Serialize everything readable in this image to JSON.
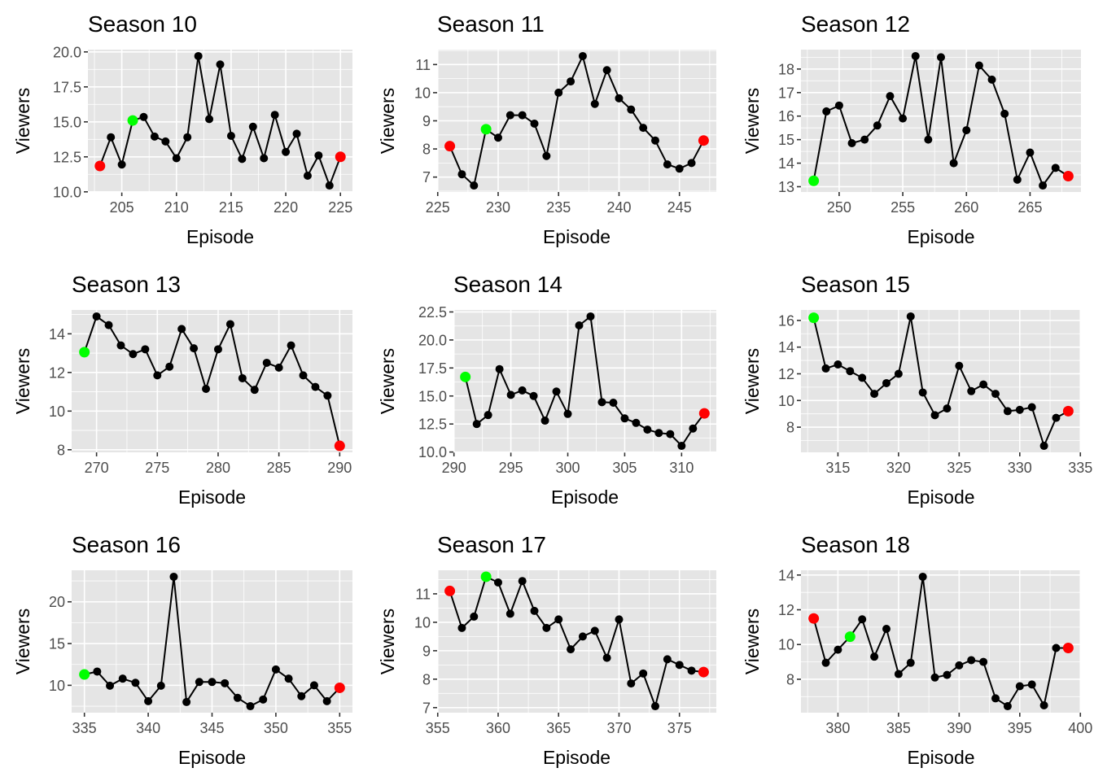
{
  "chart_data": [
    {
      "type": "line",
      "title": "Season 10",
      "xlabel": "Episode",
      "ylabel": "Viewers",
      "x_ticks": [
        205,
        210,
        215,
        220,
        225
      ],
      "y_ticks": [
        10.0,
        12.5,
        15.0,
        17.5,
        20.0
      ],
      "y_tick_labels": [
        "10.0",
        "12.5",
        "15.0",
        "17.5",
        "20.0"
      ],
      "grid": true,
      "x": [
        203,
        204,
        205,
        206,
        207,
        208,
        209,
        210,
        211,
        212,
        213,
        214,
        215,
        216,
        217,
        218,
        219,
        220,
        221,
        222,
        223,
        224,
        225
      ],
      "y": [
        11.85,
        13.9,
        11.95,
        15.1,
        15.35,
        13.95,
        13.6,
        12.4,
        13.9,
        19.7,
        15.2,
        19.1,
        14.0,
        12.35,
        14.65,
        12.4,
        15.5,
        12.85,
        14.15,
        11.15,
        12.6,
        10.45,
        12.5
      ],
      "highlight": [
        {
          "x": 203,
          "color": "#ff0000"
        },
        {
          "x": 206,
          "color": "#00ff00"
        },
        {
          "x": 225,
          "color": "#ff0000"
        }
      ]
    },
    {
      "type": "line",
      "title": "Season 11",
      "xlabel": "Episode",
      "ylabel": "Viewers",
      "x_ticks": [
        225,
        230,
        235,
        240,
        245
      ],
      "y_ticks": [
        7,
        8,
        9,
        10,
        11
      ],
      "y_tick_labels": [
        "7",
        "8",
        "9",
        "10",
        "11"
      ],
      "grid": true,
      "x": [
        226,
        227,
        228,
        229,
        230,
        231,
        232,
        233,
        234,
        235,
        236,
        237,
        238,
        239,
        240,
        241,
        242,
        243,
        244,
        245,
        246,
        247
      ],
      "y": [
        8.1,
        7.1,
        6.7,
        8.7,
        8.4,
        9.2,
        9.2,
        8.9,
        7.75,
        10.0,
        10.4,
        11.3,
        9.6,
        10.8,
        9.8,
        9.4,
        8.75,
        8.3,
        7.45,
        7.3,
        7.5,
        8.3
      ],
      "highlight": [
        {
          "x": 226,
          "color": "#ff0000"
        },
        {
          "x": 229,
          "color": "#00ff00"
        },
        {
          "x": 247,
          "color": "#ff0000"
        }
      ]
    },
    {
      "type": "line",
      "title": "Season 12",
      "xlabel": "Episode",
      "ylabel": "Viewers",
      "x_ticks": [
        250,
        255,
        260,
        265
      ],
      "y_ticks": [
        13,
        14,
        15,
        16,
        17,
        18
      ],
      "y_tick_labels": [
        "13",
        "14",
        "15",
        "16",
        "17",
        "18"
      ],
      "grid": true,
      "x": [
        248,
        249,
        250,
        251,
        252,
        253,
        254,
        255,
        256,
        257,
        258,
        259,
        260,
        261,
        262,
        263,
        264,
        265,
        266,
        267,
        268
      ],
      "y": [
        13.25,
        16.2,
        16.45,
        14.85,
        15.0,
        15.6,
        16.85,
        15.9,
        18.55,
        15.0,
        18.5,
        14.0,
        15.4,
        18.15,
        17.55,
        16.1,
        13.3,
        14.45,
        13.05,
        13.8,
        13.45
      ],
      "highlight": [
        {
          "x": 248,
          "color": "#00ff00"
        },
        {
          "x": 268,
          "color": "#ff0000"
        }
      ]
    },
    {
      "type": "line",
      "title": "Season 13",
      "xlabel": "Episode",
      "ylabel": "Viewers",
      "x_ticks": [
        270,
        275,
        280,
        285,
        290
      ],
      "y_ticks": [
        8,
        10,
        12,
        14
      ],
      "y_tick_labels": [
        "8",
        "10",
        "12",
        "14"
      ],
      "grid": true,
      "x": [
        269,
        270,
        271,
        272,
        273,
        274,
        275,
        276,
        277,
        278,
        279,
        280,
        281,
        282,
        283,
        284,
        285,
        286,
        287,
        288,
        289,
        290
      ],
      "y": [
        13.05,
        14.9,
        14.45,
        13.4,
        12.95,
        13.2,
        11.85,
        12.3,
        14.25,
        13.25,
        11.15,
        13.2,
        14.5,
        11.7,
        11.1,
        12.5,
        12.25,
        13.4,
        11.85,
        11.25,
        10.8,
        8.2
      ],
      "highlight": [
        {
          "x": 269,
          "color": "#00ff00"
        },
        {
          "x": 290,
          "color": "#ff0000"
        }
      ]
    },
    {
      "type": "line",
      "title": "Season 14",
      "xlabel": "Episode",
      "ylabel": "Viewers",
      "x_ticks": [
        290,
        295,
        300,
        305,
        310
      ],
      "y_ticks": [
        10.0,
        12.5,
        15.0,
        17.5,
        20.0,
        22.5
      ],
      "y_tick_labels": [
        "10.0",
        "12.5",
        "15.0",
        "17.5",
        "20.0",
        "22.5"
      ],
      "grid": true,
      "x": [
        291,
        292,
        293,
        294,
        295,
        296,
        297,
        298,
        299,
        300,
        301,
        302,
        303,
        304,
        305,
        306,
        307,
        308,
        309,
        310,
        311,
        312
      ],
      "y": [
        16.7,
        12.5,
        13.3,
        17.4,
        15.1,
        15.5,
        15.0,
        12.8,
        15.4,
        13.4,
        21.3,
        22.1,
        14.45,
        14.4,
        13.0,
        12.6,
        12.0,
        11.7,
        11.6,
        10.55,
        12.1,
        13.45
      ],
      "highlight": [
        {
          "x": 291,
          "color": "#00ff00"
        },
        {
          "x": 312,
          "color": "#ff0000"
        }
      ]
    },
    {
      "type": "line",
      "title": "Season 15",
      "xlabel": "Episode",
      "ylabel": "Viewers",
      "x_ticks": [
        315,
        320,
        325,
        330,
        335
      ],
      "y_ticks": [
        8,
        10,
        12,
        14,
        16
      ],
      "y_tick_labels": [
        "8",
        "10",
        "12",
        "14",
        "16"
      ],
      "grid": true,
      "x": [
        313,
        314,
        315,
        316,
        317,
        318,
        319,
        320,
        321,
        322,
        323,
        324,
        325,
        326,
        327,
        328,
        329,
        330,
        331,
        332,
        333,
        334
      ],
      "y": [
        16.2,
        12.4,
        12.7,
        12.2,
        11.7,
        10.5,
        11.3,
        12.0,
        16.3,
        10.6,
        8.9,
        9.4,
        12.6,
        10.7,
        11.2,
        10.5,
        9.2,
        9.3,
        9.5,
        6.6,
        8.7,
        9.2
      ],
      "highlight": [
        {
          "x": 313,
          "color": "#00ff00"
        },
        {
          "x": 334,
          "color": "#ff0000"
        }
      ]
    },
    {
      "type": "line",
      "title": "Season 16",
      "xlabel": "Episode",
      "ylabel": "Viewers",
      "x_ticks": [
        335,
        340,
        345,
        350,
        355
      ],
      "y_ticks": [
        10,
        15,
        20
      ],
      "y_tick_labels": [
        "10",
        "15",
        "20"
      ],
      "grid": true,
      "x": [
        335,
        336,
        337,
        338,
        339,
        340,
        341,
        342,
        343,
        344,
        345,
        346,
        347,
        348,
        349,
        350,
        351,
        352,
        353,
        354,
        355
      ],
      "y": [
        11.3,
        11.65,
        9.95,
        10.8,
        10.3,
        8.1,
        9.95,
        23.0,
        8.0,
        10.4,
        10.4,
        10.25,
        8.5,
        7.5,
        8.3,
        11.9,
        10.8,
        8.7,
        10.0,
        8.1,
        9.7
      ],
      "highlight": [
        {
          "x": 335,
          "color": "#00ff00"
        },
        {
          "x": 355,
          "color": "#ff0000"
        }
      ]
    },
    {
      "type": "line",
      "title": "Season 17",
      "xlabel": "Episode",
      "ylabel": "Viewers",
      "x_ticks": [
        355,
        360,
        365,
        370,
        375
      ],
      "y_ticks": [
        7,
        8,
        9,
        10,
        11
      ],
      "y_tick_labels": [
        "7",
        "8",
        "9",
        "10",
        "11"
      ],
      "grid": true,
      "x": [
        356,
        357,
        358,
        359,
        360,
        361,
        362,
        363,
        364,
        365,
        366,
        367,
        368,
        369,
        370,
        371,
        372,
        373,
        374,
        375,
        376,
        377
      ],
      "y": [
        11.1,
        9.8,
        10.2,
        11.6,
        11.4,
        10.3,
        11.45,
        10.4,
        9.8,
        10.1,
        9.05,
        9.5,
        9.7,
        8.75,
        10.1,
        7.85,
        8.2,
        7.05,
        8.7,
        8.5,
        8.3,
        8.25
      ],
      "highlight": [
        {
          "x": 356,
          "color": "#ff0000"
        },
        {
          "x": 359,
          "color": "#00ff00"
        },
        {
          "x": 377,
          "color": "#ff0000"
        }
      ]
    },
    {
      "type": "line",
      "title": "Season 18",
      "xlabel": "Episode",
      "ylabel": "Viewers",
      "x_ticks": [
        380,
        385,
        390,
        395,
        400
      ],
      "y_ticks": [
        8,
        10,
        12,
        14
      ],
      "y_tick_labels": [
        "8",
        "10",
        "12",
        "14"
      ],
      "grid": true,
      "x": [
        378,
        379,
        380,
        381,
        382,
        383,
        384,
        385,
        386,
        387,
        388,
        389,
        390,
        391,
        392,
        393,
        394,
        395,
        396,
        397,
        398,
        399
      ],
      "y": [
        11.5,
        8.95,
        9.7,
        10.45,
        11.45,
        9.3,
        10.9,
        8.3,
        8.95,
        13.9,
        8.1,
        8.25,
        8.8,
        9.1,
        9.0,
        6.9,
        6.45,
        7.6,
        7.7,
        6.5,
        9.8,
        9.8
      ],
      "highlight": [
        {
          "x": 378,
          "color": "#ff0000"
        },
        {
          "x": 381,
          "color": "#00ff00"
        },
        {
          "x": 399,
          "color": "#ff0000"
        }
      ]
    }
  ],
  "colors": {
    "panel_background": "#e5e5e5",
    "line": "#000000",
    "point": "#000000"
  }
}
